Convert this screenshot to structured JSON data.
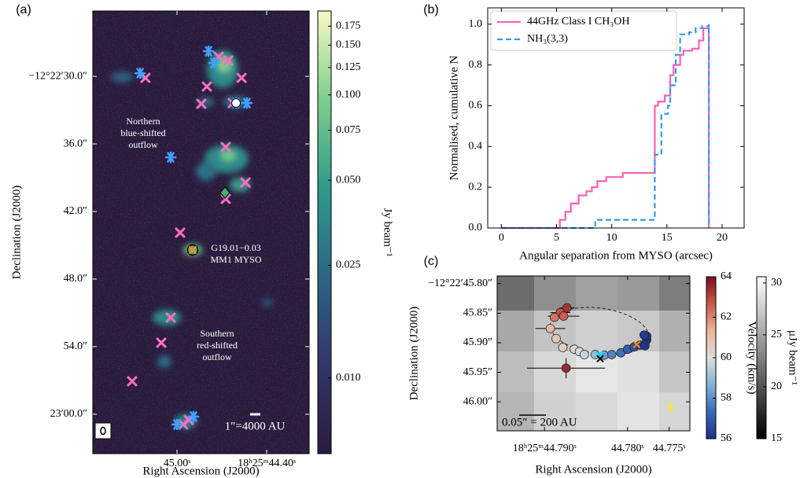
{
  "chart_data": [
    {
      "type": "map",
      "panel_label": "(a)",
      "xlabel": "Right Ascension (J2000)",
      "ylabel": "Declination (J2000)",
      "xlim": [
        45.563,
        44.116
      ],
      "xticks": [
        {
          "value": 45.0,
          "label": "45.00ˢ"
        },
        {
          "value": 44.4,
          "label": "18ʰ25ᵐ44.40ˢ"
        }
      ],
      "ylim": [
        63.5,
        24.2
      ],
      "yticks": [
        {
          "value": 30,
          "label": "−12°22′30.0″"
        },
        {
          "value": 36,
          "label": "36.0″"
        },
        {
          "value": 42,
          "label": "42.0″"
        },
        {
          "value": 48,
          "label": "48.0″"
        },
        {
          "value": 54,
          "label": "54.0″"
        },
        {
          "value": 60,
          "label": "23′00.0″"
        }
      ],
      "colorbar": {
        "label": "Jy beam⁻¹",
        "log": true,
        "lim": [
          0.0054,
          0.198
        ],
        "ticks": [
          0.175,
          {
            "value": 0.15,
            "label": "0.150"
          },
          0.125,
          {
            "value": 0.1,
            "label": "0.100"
          },
          0.075,
          {
            "value": 0.05,
            "label": "0.050"
          },
          0.025,
          {
            "value": 0.01,
            "label": "0.010"
          }
        ]
      },
      "annotations": [
        [
          "Northern",
          "blue-shifted",
          "outflow"
        ],
        [
          "G19.01−0.03",
          "MM1 MYSO"
        ],
        [
          "Southern",
          "red-shifted",
          "outflow"
        ]
      ],
      "scale_bar": "1″=4000 AU",
      "series": [
        {
          "color": "#ff6ec7",
          "marker": "x",
          "x": [
            45.211,
            44.8,
            44.837,
            44.721,
            44.658,
            44.568,
            44.626,
            44.674,
            44.542,
            44.674,
            44.979,
            45.3,
            45.105,
            45.042,
            44.958,
            44.921
          ],
          "y": [
            30.14,
            30.91,
            32.44,
            28.26,
            28.6,
            30.14,
            32.37,
            36.28,
            39.42,
            40.88,
            43.88,
            57.07,
            53.65,
            51.42,
            60.91,
            60.5
          ]
        },
        {
          "color": "#3fa0ff",
          "marker": "asterisk",
          "x": [
            45.247,
            44.789,
            44.753,
            44.605,
            44.532,
            45.042,
            44.889,
            45.0
          ],
          "y": [
            29.72,
            27.77,
            28.81,
            32.37,
            32.37,
            37.19,
            60.21,
            60.91
          ]
        },
        {
          "color": "#ffffff",
          "marker": "circle",
          "x": [
            44.605
          ],
          "y": [
            32.37
          ]
        },
        {
          "color": "#3cb371",
          "marker": "diamond",
          "x": [
            44.679
          ],
          "y": [
            40.33
          ]
        },
        {
          "color": "#ff8c00",
          "marker": "x-circle",
          "x": [
            44.895
          ],
          "y": [
            45.42
          ]
        }
      ]
    },
    {
      "type": "step",
      "panel_label": "(b)",
      "xlabel": "Angular separation from MYSO (arcsec)",
      "ylabel": "Normalised, cumulative N",
      "xlim": [
        -1.24,
        22
      ],
      "xticks": [
        0,
        5,
        10,
        15,
        20
      ],
      "ylim": [
        0,
        1.08
      ],
      "yticks": [
        {
          "value": 0,
          "label": "0.0"
        },
        0.2,
        0.4,
        0.6,
        0.8,
        {
          "value": 1,
          "label": "1.0"
        }
      ],
      "legend": "upper left",
      "series": [
        {
          "name": "44GHz Class I CH₃OH",
          "color": "#ff5fb4",
          "dash": false,
          "x": [
            0,
            5.3,
            5.8,
            6.3,
            7.0,
            7.7,
            8.2,
            8.7,
            9.5,
            11.0,
            13.9,
            14.2,
            14.8,
            15.3,
            15.6,
            16.2,
            16.5,
            17.3,
            17.9,
            18.3,
            18.8
          ],
          "y": [
            0,
            0.04,
            0.08,
            0.12,
            0.16,
            0.18,
            0.2,
            0.23,
            0.25,
            0.27,
            0.6,
            0.62,
            0.65,
            0.75,
            0.8,
            0.85,
            0.87,
            0.88,
            0.92,
            0.98,
            1.0
          ]
        },
        {
          "name": "NH₃(3,3)",
          "color": "#3399ee",
          "dash": true,
          "x": [
            0,
            8.5,
            13.9,
            14.5,
            15.1,
            15.3,
            15.8,
            16.2,
            17.0,
            17.6,
            18.2,
            18.8
          ],
          "y": [
            0,
            0.04,
            0.36,
            0.56,
            0.6,
            0.7,
            0.85,
            0.95,
            0.96,
            0.98,
            0.99,
            1.0
          ]
        }
      ]
    },
    {
      "type": "scatter",
      "panel_label": "(c)",
      "xlabel": "Right Ascension (J2000)",
      "ylabel": "Declination (J2000)",
      "xlim": [
        44.7957,
        44.7725
      ],
      "xticks": [
        {
          "value": 44.79,
          "label": "18ʰ25ᵐ44.790ˢ"
        },
        {
          "value": 44.78,
          "label": "44.780ˢ"
        },
        {
          "value": 44.775,
          "label": "44.775ˢ"
        }
      ],
      "ylim": [
        46.049,
        45.787
      ],
      "yticks": [
        {
          "value": 45.8,
          "label": "−12°22′45.80″"
        },
        {
          "value": 45.85,
          "label": "45.85″"
        },
        {
          "value": 45.9,
          "label": "45.90″"
        },
        {
          "value": 45.95,
          "label": "45.95″"
        },
        {
          "value": 46.0,
          "label": "46.00″"
        }
      ],
      "scale_bar": "0.05″ = 200 AU",
      "colorbar": {
        "label": "Velocity (km/s)",
        "cmap": "RdBu_r",
        "lim": [
          56,
          64
        ],
        "ticks": [
          56,
          58,
          60,
          62,
          64
        ]
      },
      "colorbar2": {
        "label": "μJy beam⁻¹",
        "cmap": "gray",
        "lim": [
          15,
          30.6
        ],
        "ticks": [
          15,
          20,
          25,
          30
        ]
      },
      "series": [
        {
          "x": [
            44.7873,
            44.7881,
            44.7888,
            44.7877,
            44.7893,
            44.7886,
            44.7878,
            44.7864,
            44.7858,
            44.7852,
            44.7839,
            44.7828,
            44.7819,
            44.7808,
            44.78,
            44.7792,
            44.7785,
            44.7779,
            44.7777,
            44.7777,
            44.778,
            44.7874
          ],
          "y": [
            45.841,
            45.849,
            45.857,
            45.855,
            45.876,
            45.893,
            45.908,
            45.911,
            45.915,
            45.92,
            45.92,
            45.921,
            45.92,
            45.917,
            45.911,
            45.907,
            45.904,
            45.905,
            45.895,
            45.889,
            45.887,
            45.943
          ],
          "c": [
            63.3,
            62.8,
            62.3,
            62.6,
            61.3,
            60.8,
            60.5,
            60.2,
            59.9,
            59.7,
            59.0,
            58.3,
            57.8,
            57.4,
            57.0,
            56.7,
            56.4,
            56.2,
            56.1,
            56.0,
            56.3,
            63.5
          ],
          "xerr": [
            0.0009,
            0.0012,
            null,
            0.0019,
            0.0018,
            null,
            null,
            null,
            null,
            null,
            null,
            null,
            null,
            null,
            null,
            null,
            null,
            null,
            null,
            null,
            null,
            0.0047
          ],
          "yerr": [
            null,
            null,
            null,
            null,
            null,
            null,
            null,
            null,
            null,
            null,
            null,
            null,
            null,
            null,
            null,
            null,
            null,
            null,
            null,
            null,
            null,
            0.017
          ]
        }
      ],
      "markers": [
        {
          "color": "#00e5ff",
          "marker": "x",
          "x": 44.7834,
          "y": 45.92
        },
        {
          "color": "#111111",
          "marker": "x",
          "x": 44.7833,
          "y": 45.927
        },
        {
          "color": "#ff8c00",
          "marker": "x",
          "x": 44.7789,
          "y": 45.903
        },
        {
          "color": "#ffee00",
          "marker": "plus",
          "x": 44.7748,
          "y": 46.009
        }
      ]
    }
  ]
}
